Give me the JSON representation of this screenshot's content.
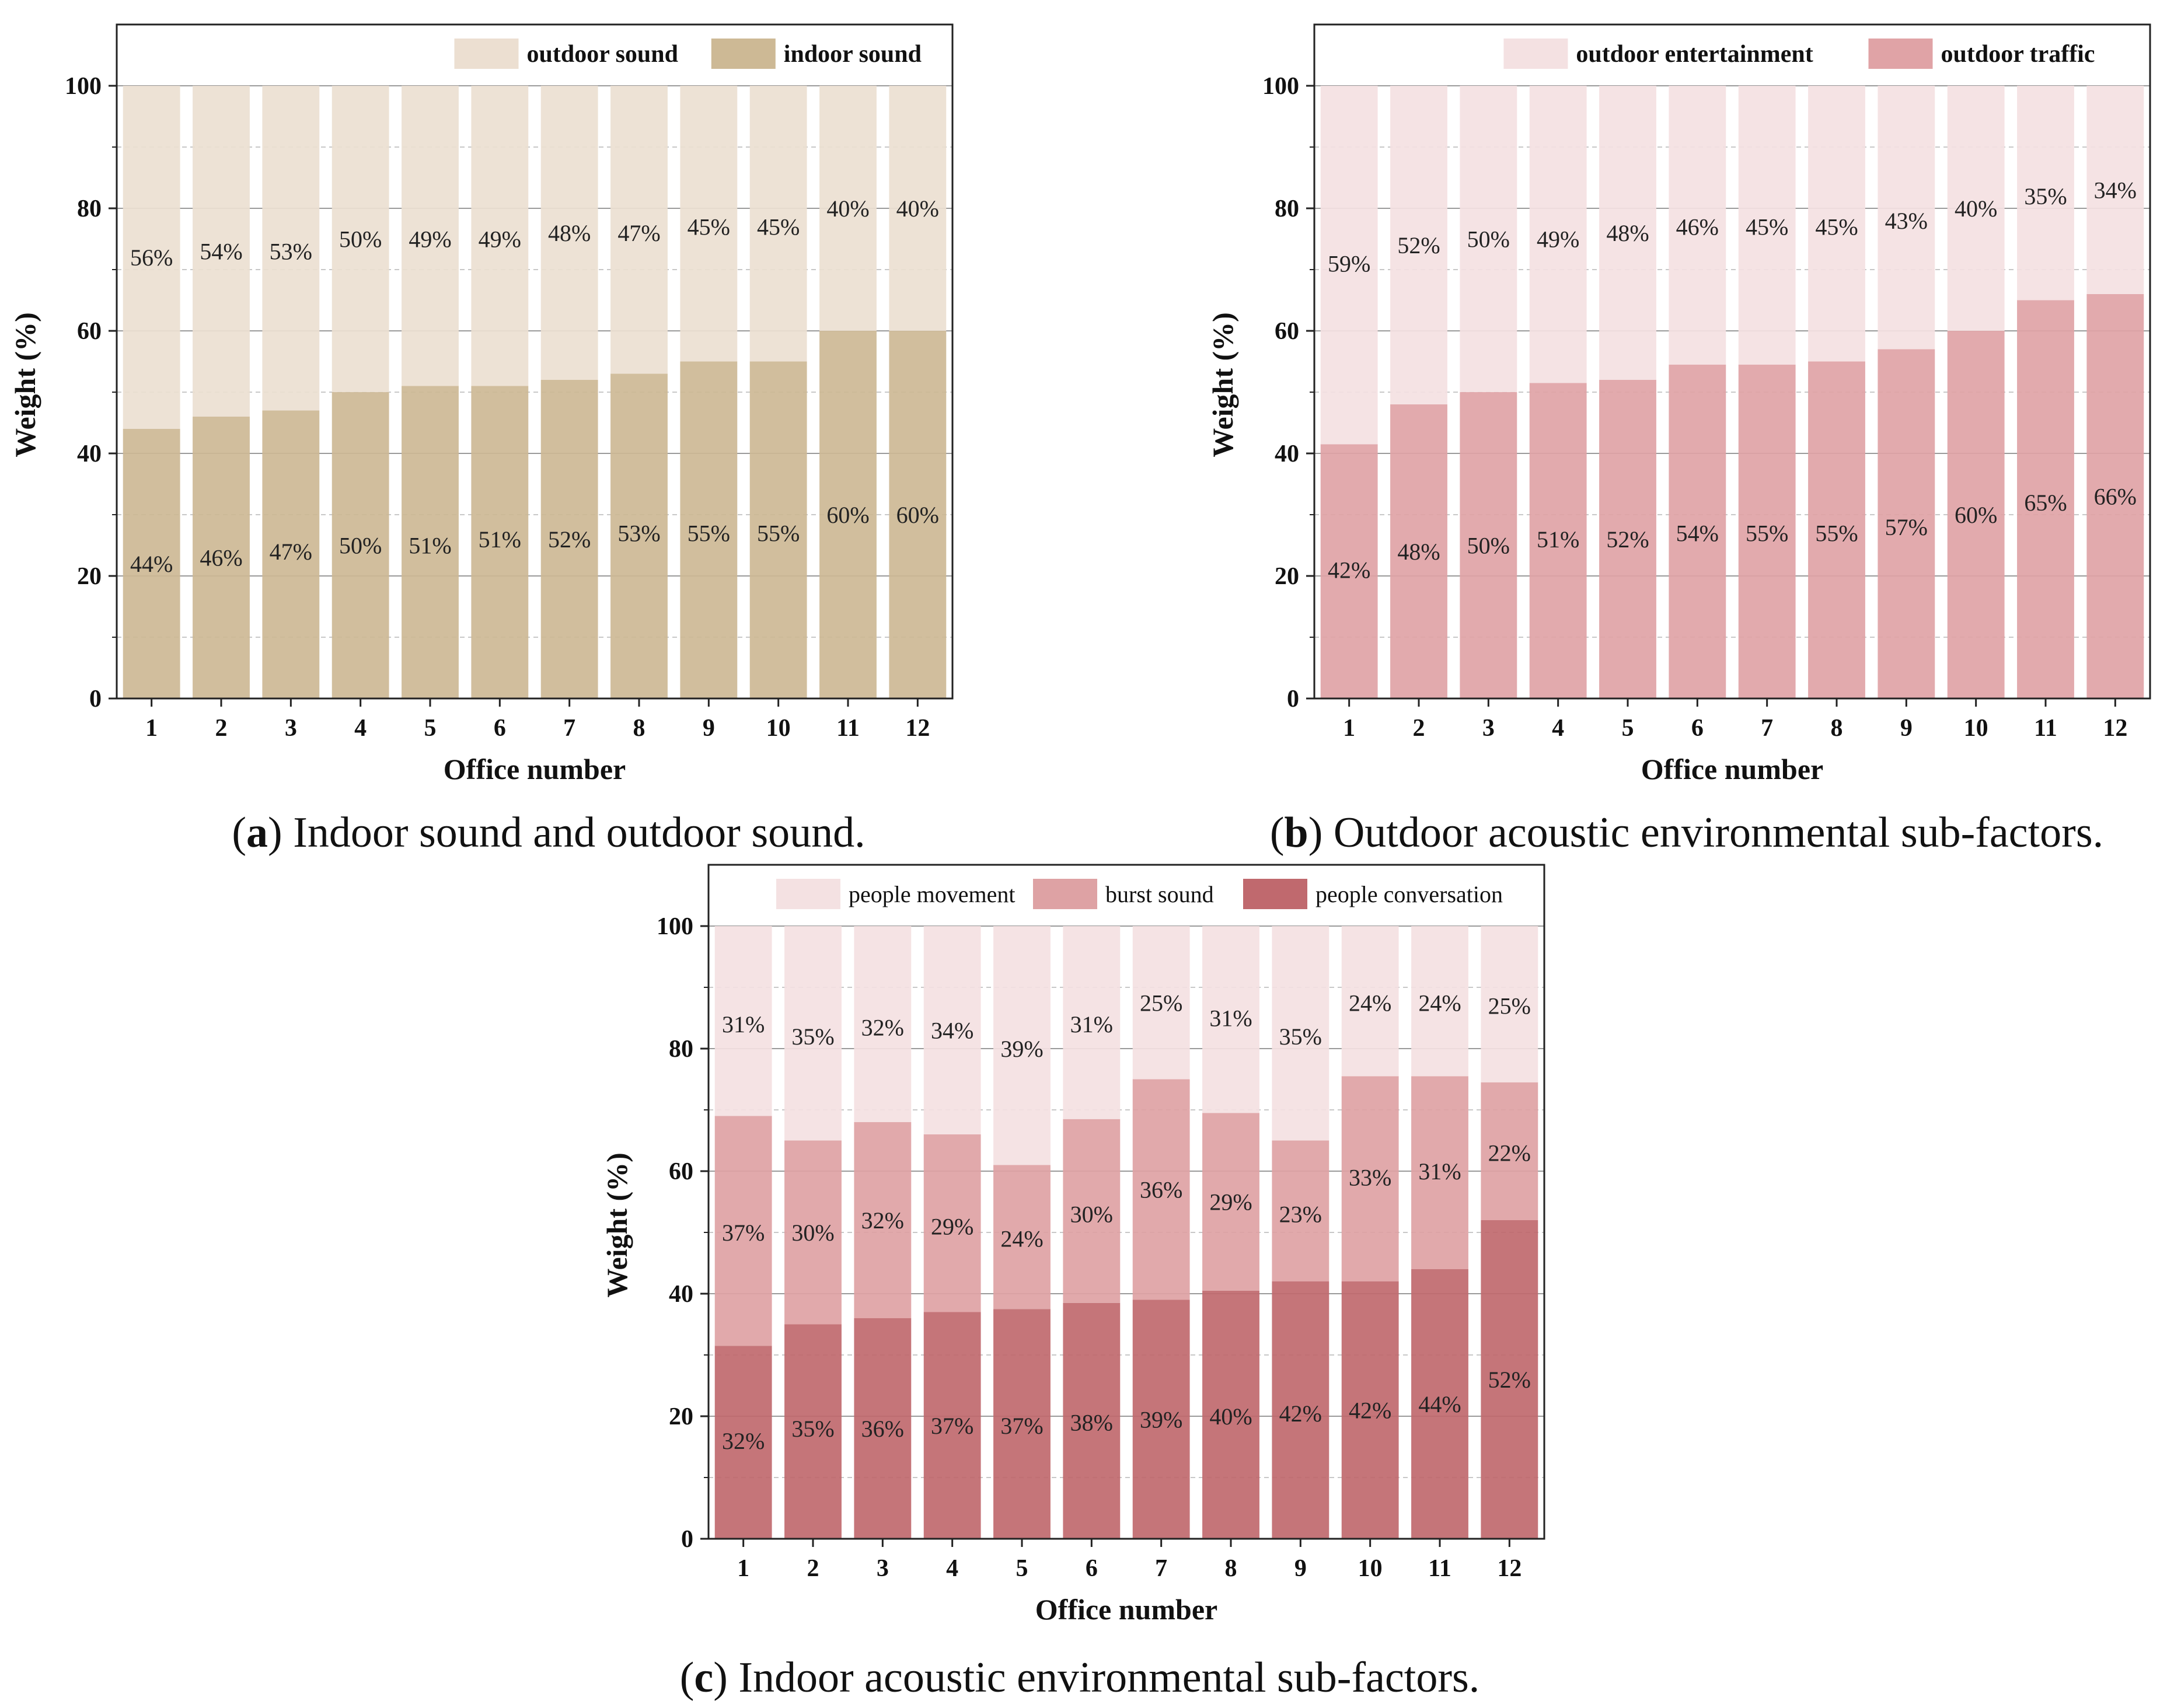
{
  "captions": [
    {
      "letter": "a",
      "text": "Indoor sound and outdoor sound."
    },
    {
      "letter": "b",
      "text": "Outdoor acoustic environmental sub-factors."
    },
    {
      "letter": "c",
      "text": "Indoor acoustic environmental sub-factors."
    }
  ],
  "chart_data": [
    {
      "id": "a",
      "type": "bar",
      "stacked": true,
      "xlabel": "Office number",
      "ylabel": "Weight (%)",
      "ylim": [
        0,
        110
      ],
      "yticks": [
        0,
        20,
        40,
        60,
        80,
        100
      ],
      "grid": true,
      "legend_position": "top-right",
      "categories": [
        "1",
        "2",
        "3",
        "4",
        "5",
        "6",
        "7",
        "8",
        "9",
        "10",
        "11",
        "12"
      ],
      "series": [
        {
          "name": "indoor sound",
          "color": "#cdb995",
          "values": [
            44,
            46,
            47,
            50,
            51,
            51,
            52,
            53,
            55,
            55,
            60,
            60
          ],
          "labels": [
            "44%",
            "46%",
            "47%",
            "50%",
            "51%",
            "51%",
            "52%",
            "53%",
            "55%",
            "55%",
            "60%",
            "60%"
          ],
          "label_y": [
            22,
            23,
            24,
            25,
            25,
            26,
            26,
            27,
            27,
            27,
            30,
            30
          ]
        },
        {
          "name": "outdoor sound",
          "color": "#ecdfd1",
          "values": [
            56,
            54,
            53,
            50,
            49,
            49,
            48,
            47,
            45,
            45,
            40,
            40
          ],
          "labels": [
            "56%",
            "54%",
            "53%",
            "50%",
            "49%",
            "49%",
            "48%",
            "47%",
            "45%",
            "45%",
            "40%",
            "40%"
          ],
          "label_y": [
            72,
            73,
            73,
            75,
            75,
            75,
            76,
            76,
            77,
            77,
            80,
            80
          ]
        }
      ]
    },
    {
      "id": "b",
      "type": "bar",
      "stacked": true,
      "xlabel": "Office number",
      "ylabel": "Weight (%)",
      "ylim": [
        0,
        110
      ],
      "yticks": [
        0,
        20,
        40,
        60,
        80,
        100
      ],
      "grid": true,
      "legend_position": "top-right",
      "categories": [
        "1",
        "2",
        "3",
        "4",
        "5",
        "6",
        "7",
        "8",
        "9",
        "10",
        "11",
        "12"
      ],
      "series": [
        {
          "name": "outdoor traffic",
          "color": "#e0a3a6",
          "values": [
            41.5,
            48,
            50,
            51.5,
            52,
            54.5,
            54.5,
            55,
            57,
            60,
            65,
            66
          ],
          "labels": [
            "42%",
            "48%",
            "50%",
            "51%",
            "52%",
            "54%",
            "55%",
            "55%",
            "57%",
            "60%",
            "65%",
            "66%"
          ],
          "label_y": [
            21,
            24,
            25,
            26,
            26,
            27,
            27,
            27,
            28,
            30,
            32,
            33
          ]
        },
        {
          "name": "outdoor entertainment",
          "color": "#f4e1e2",
          "values": [
            58.5,
            52,
            50,
            48.5,
            48,
            45.5,
            45.5,
            45,
            43,
            40,
            35,
            34
          ],
          "labels": [
            "59%",
            "52%",
            "50%",
            "49%",
            "48%",
            "46%",
            "45%",
            "45%",
            "43%",
            "40%",
            "35%",
            "34%"
          ],
          "label_y": [
            71,
            74,
            75,
            75,
            76,
            77,
            77,
            77,
            78,
            80,
            82,
            83
          ]
        }
      ]
    },
    {
      "id": "c",
      "type": "bar",
      "stacked": true,
      "xlabel": "Office number",
      "ylabel": "Weight (%)",
      "ylim": [
        0,
        110
      ],
      "yticks": [
        0,
        20,
        40,
        60,
        80,
        100
      ],
      "grid": true,
      "legend_position": "top-right",
      "categories": [
        "1",
        "2",
        "3",
        "4",
        "5",
        "6",
        "7",
        "8",
        "9",
        "10",
        "11",
        "12"
      ],
      "series": [
        {
          "name": "people conversation",
          "color": "#c0696e",
          "values": [
            31.5,
            35,
            36,
            37,
            37.5,
            38.5,
            39,
            40.5,
            42,
            42,
            44,
            52
          ],
          "labels": [
            "32%",
            "35%",
            "36%",
            "37%",
            "37%",
            "38%",
            "39%",
            "40%",
            "42%",
            "42%",
            "44%",
            "52%"
          ],
          "label_y": [
            16,
            18,
            18,
            18.5,
            18.5,
            19,
            19.5,
            20,
            20.5,
            21,
            22,
            26
          ]
        },
        {
          "name": "burst sound",
          "color": "#dea2a4",
          "values": [
            37.5,
            30,
            32,
            29,
            23.5,
            30,
            36,
            29,
            23,
            33.5,
            31.5,
            22.5
          ],
          "labels": [
            "37%",
            "30%",
            "32%",
            "29%",
            "24%",
            "30%",
            "36%",
            "29%",
            "23%",
            "33%",
            "31%",
            "22%"
          ],
          "label_y": [
            50,
            50,
            52,
            51,
            49,
            53,
            57,
            55,
            53,
            59,
            60,
            63
          ]
        },
        {
          "name": "people movement",
          "color": "#f4e1e2",
          "values": [
            31,
            35,
            32,
            34,
            39,
            31.5,
            25,
            30.5,
            35,
            24.5,
            24.5,
            25.5
          ],
          "labels": [
            "31%",
            "35%",
            "32%",
            "34%",
            "39%",
            "31%",
            "25%",
            "31%",
            "35%",
            "24%",
            "24%",
            "25%"
          ],
          "label_y": [
            84,
            82,
            83.5,
            83,
            80,
            84,
            87.5,
            85,
            82,
            87.5,
            87.5,
            87
          ]
        }
      ]
    }
  ]
}
